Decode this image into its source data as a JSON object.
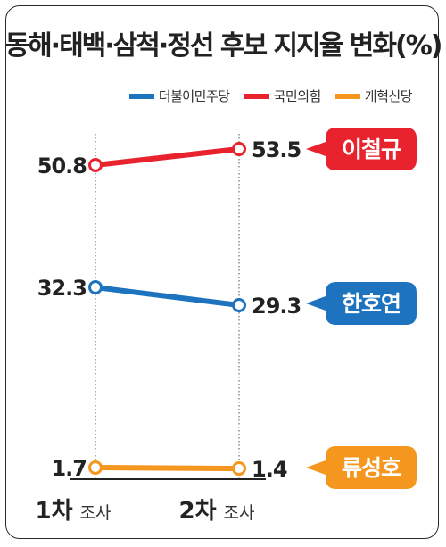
{
  "title": "동해·태백·삼척·정선 후보 지지율 변화(%)",
  "chart_data": {
    "type": "line",
    "categories": [
      "1차 조사",
      "2차 조사"
    ],
    "category_parts": [
      {
        "main": "1차",
        "sub": "조사"
      },
      {
        "main": "2차",
        "sub": "조사"
      }
    ],
    "series": [
      {
        "name": "국민의힘",
        "candidate": "이철규",
        "color": "#e8232e",
        "values": [
          50.8,
          53.5
        ],
        "labels": [
          "50.8",
          "53.5"
        ]
      },
      {
        "name": "더불어민주당",
        "candidate": "한호연",
        "color": "#1e73be",
        "values": [
          32.3,
          29.3
        ],
        "labels": [
          "32.3",
          "29.3"
        ]
      },
      {
        "name": "개혁신당",
        "candidate": "류성호",
        "color": "#f5961e",
        "values": [
          1.7,
          1.4
        ],
        "labels": [
          "1.7",
          "1.4"
        ]
      }
    ],
    "legend": {
      "position": "top-right",
      "order": [
        "더불어민주당",
        "국민의힘",
        "개혁신당"
      ]
    }
  }
}
